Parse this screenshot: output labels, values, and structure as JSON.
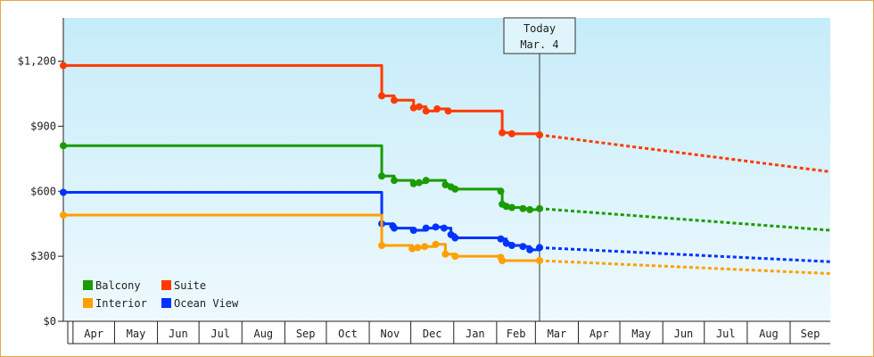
{
  "chart_data": {
    "type": "line",
    "title": "",
    "xlabel": "",
    "ylabel": "",
    "ylim": [
      0,
      1400
    ],
    "y_ticks": [
      {
        "value": 0,
        "label": "$0"
      },
      {
        "value": 300,
        "label": "$300"
      },
      {
        "value": 600,
        "label": "$600"
      },
      {
        "value": 900,
        "label": "$900"
      },
      {
        "value": 1200,
        "label": "$1,200"
      }
    ],
    "x_range": [
      "2024-03-25",
      "2025-09-30"
    ],
    "months": [
      {
        "label": "Apr",
        "start": "2024-04-01"
      },
      {
        "label": "May",
        "start": "2024-05-01"
      },
      {
        "label": "Jun",
        "start": "2024-06-01"
      },
      {
        "label": "Jul",
        "start": "2024-07-01"
      },
      {
        "label": "Aug",
        "start": "2024-08-01"
      },
      {
        "label": "Sep",
        "start": "2024-09-01"
      },
      {
        "label": "Oct",
        "start": "2024-10-01"
      },
      {
        "label": "Nov",
        "start": "2024-11-01"
      },
      {
        "label": "Dec",
        "start": "2024-12-01"
      },
      {
        "label": "Jan",
        "start": "2025-01-01"
      },
      {
        "label": "Feb",
        "start": "2025-02-01"
      },
      {
        "label": "Mar",
        "start": "2025-03-01"
      },
      {
        "label": "Apr",
        "start": "2025-04-01"
      },
      {
        "label": "May",
        "start": "2025-05-01"
      },
      {
        "label": "Jun",
        "start": "2025-06-01"
      },
      {
        "label": "Jul",
        "start": "2025-07-01"
      },
      {
        "label": "Aug",
        "start": "2025-08-01"
      },
      {
        "label": "Sep",
        "start": "2025-09-01"
      }
    ],
    "today": {
      "line1": "Today",
      "line2": "Mar. 4",
      "date": "2025-03-04"
    },
    "legend_position": "bottom-left",
    "grid": false,
    "series": [
      {
        "name": "Suite",
        "color": "#ff3a00",
        "points": [
          [
            "2024-03-25",
            1180
          ],
          [
            "2024-11-09",
            1180
          ],
          [
            "2024-11-10",
            1040
          ],
          [
            "2024-11-18",
            1040
          ],
          [
            "2024-11-19",
            1020
          ],
          [
            "2024-12-02",
            1020
          ],
          [
            "2024-12-03",
            985
          ],
          [
            "2024-12-06",
            985
          ],
          [
            "2024-12-07",
            990
          ],
          [
            "2024-12-11",
            990
          ],
          [
            "2024-12-12",
            970
          ],
          [
            "2024-12-19",
            970
          ],
          [
            "2024-12-20",
            980
          ],
          [
            "2024-12-27",
            980
          ],
          [
            "2024-12-28",
            970
          ],
          [
            "2025-02-04",
            970
          ],
          [
            "2025-02-05",
            870
          ],
          [
            "2025-02-12",
            865
          ],
          [
            "2025-03-04",
            860
          ]
        ],
        "forecast": [
          [
            "2025-03-04",
            860
          ],
          [
            "2025-09-30",
            690
          ]
        ]
      },
      {
        "name": "Balcony",
        "color": "#1a9c00",
        "points": [
          [
            "2024-03-25",
            810
          ],
          [
            "2024-11-09",
            810
          ],
          [
            "2024-11-10",
            670
          ],
          [
            "2024-11-18",
            670
          ],
          [
            "2024-11-19",
            650
          ],
          [
            "2024-12-02",
            650
          ],
          [
            "2024-12-03",
            635
          ],
          [
            "2024-12-06",
            635
          ],
          [
            "2024-12-07",
            640
          ],
          [
            "2024-12-11",
            640
          ],
          [
            "2024-12-12",
            650
          ],
          [
            "2024-12-19",
            650
          ],
          [
            "2024-12-20",
            650
          ],
          [
            "2024-12-25",
            650
          ],
          [
            "2024-12-26",
            630
          ],
          [
            "2024-12-30",
            620
          ],
          [
            "2025-01-02",
            610
          ],
          [
            "2025-02-04",
            600
          ],
          [
            "2025-02-05",
            540
          ],
          [
            "2025-02-08",
            530
          ],
          [
            "2025-02-12",
            525
          ],
          [
            "2025-02-20",
            520
          ],
          [
            "2025-02-25",
            515
          ],
          [
            "2025-03-04",
            520
          ]
        ],
        "forecast": [
          [
            "2025-03-04",
            520
          ],
          [
            "2025-09-30",
            420
          ]
        ]
      },
      {
        "name": "Ocean View",
        "color": "#0033ff",
        "points": [
          [
            "2024-03-25",
            595
          ],
          [
            "2024-11-09",
            595
          ],
          [
            "2024-11-10",
            450
          ],
          [
            "2024-11-18",
            440
          ],
          [
            "2024-11-19",
            430
          ],
          [
            "2024-12-02",
            430
          ],
          [
            "2024-12-03",
            420
          ],
          [
            "2024-12-11",
            420
          ],
          [
            "2024-12-12",
            430
          ],
          [
            "2024-12-19",
            435
          ],
          [
            "2024-12-25",
            430
          ],
          [
            "2024-12-30",
            400
          ],
          [
            "2025-01-02",
            385
          ],
          [
            "2025-02-04",
            380
          ],
          [
            "2025-02-08",
            360
          ],
          [
            "2025-02-12",
            350
          ],
          [
            "2025-02-20",
            345
          ],
          [
            "2025-02-25",
            330
          ],
          [
            "2025-03-04",
            340
          ]
        ],
        "forecast": [
          [
            "2025-03-04",
            340
          ],
          [
            "2025-09-30",
            275
          ]
        ]
      },
      {
        "name": "Interior",
        "color": "#ffa000",
        "points": [
          [
            "2024-03-25",
            490
          ],
          [
            "2024-11-09",
            490
          ],
          [
            "2024-11-10",
            350
          ],
          [
            "2024-11-30",
            350
          ],
          [
            "2024-12-02",
            335
          ],
          [
            "2024-12-06",
            340
          ],
          [
            "2024-12-11",
            345
          ],
          [
            "2024-12-19",
            355
          ],
          [
            "2024-12-25",
            355
          ],
          [
            "2024-12-26",
            310
          ],
          [
            "2025-01-02",
            300
          ],
          [
            "2025-02-04",
            295
          ],
          [
            "2025-02-05",
            280
          ],
          [
            "2025-03-04",
            280
          ]
        ],
        "forecast": [
          [
            "2025-03-04",
            280
          ],
          [
            "2025-09-30",
            220
          ]
        ]
      }
    ],
    "legend": [
      {
        "name": "Balcony",
        "color": "#1a9c00"
      },
      {
        "name": "Suite",
        "color": "#ff3a00"
      },
      {
        "name": "Interior",
        "color": "#ffa000"
      },
      {
        "name": "Ocean View",
        "color": "#0033ff"
      }
    ]
  }
}
